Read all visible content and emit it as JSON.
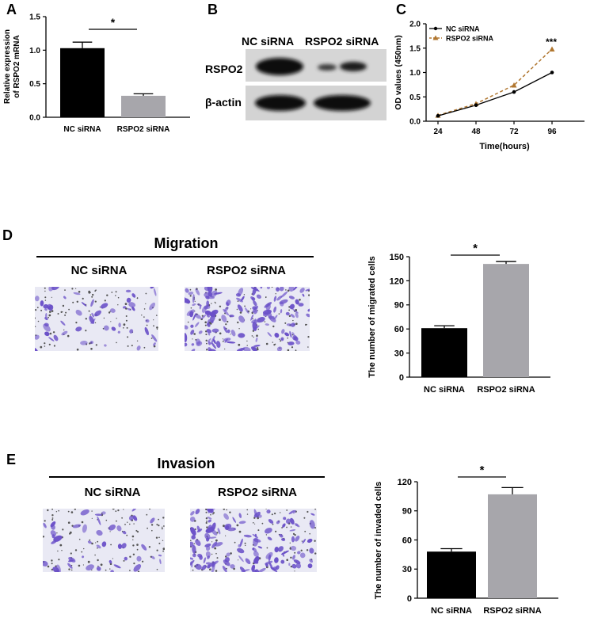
{
  "panels": {
    "A": "A",
    "B": "B",
    "C": "C",
    "D": "D",
    "E": "E"
  },
  "blot": {
    "headers": [
      "NC siRNA",
      "RSPO2 siRNA"
    ],
    "rows": [
      "RSPO2",
      "β-actin"
    ]
  },
  "migration": {
    "title": "Migration",
    "labels": [
      "NC siRNA",
      "RSPO2 siRNA"
    ]
  },
  "invasion": {
    "title": "Invasion",
    "labels": [
      "NC siRNA",
      "RSPO2 siRNA"
    ]
  },
  "colors": {
    "black_bar": "#000000",
    "grey_bar": "#a7a6ab",
    "orange_line": "#b0762f",
    "stain": "#6a50c8"
  },
  "chart_data": [
    {
      "id": "A",
      "type": "bar",
      "categories": [
        "NC siRNA",
        "RSPO2 siRNA"
      ],
      "values": [
        1.03,
        0.32
      ],
      "errors": [
        0.09,
        0.03
      ],
      "ylabel": [
        "Relative expression",
        "of RSPO2 mRNA"
      ],
      "ylim": [
        0,
        1.5
      ],
      "yticks": [
        "0.0",
        "0.5",
        "1.0",
        "1.5"
      ],
      "significance": "*"
    },
    {
      "id": "C",
      "type": "line",
      "x": [
        24,
        48,
        72,
        96
      ],
      "xticks": [
        "24",
        "48",
        "72",
        "96"
      ],
      "series": [
        {
          "name": "NC siRNA",
          "values": [
            0.11,
            0.33,
            0.6,
            1.0
          ]
        },
        {
          "name": "RSPO2 siRNA",
          "values": [
            0.12,
            0.36,
            0.74,
            1.48
          ]
        }
      ],
      "xlabel": "Time(hours)",
      "ylabel": "OD values (450nm)",
      "ylim": [
        0,
        2.0
      ],
      "yticks": [
        "0.0",
        "0.5",
        "1.0",
        "1.5",
        "2.0"
      ],
      "significance": "***",
      "legend": "top-left"
    },
    {
      "id": "D",
      "type": "bar",
      "categories": [
        "NC siRNA",
        "RSPO2 siRNA"
      ],
      "values": [
        61,
        141
      ],
      "errors": [
        3,
        3
      ],
      "ylabel": "The number of migrated cells",
      "ylim": [
        0,
        150
      ],
      "yticks": [
        "0",
        "30",
        "60",
        "90",
        "120",
        "150"
      ],
      "significance": "*"
    },
    {
      "id": "E",
      "type": "bar",
      "categories": [
        "NC siRNA",
        "RSPO2 siRNA"
      ],
      "values": [
        48,
        107
      ],
      "errors": [
        3,
        7
      ],
      "ylabel": "The number of invaded cells",
      "ylim": [
        0,
        120
      ],
      "yticks": [
        "0",
        "30",
        "60",
        "90",
        "120"
      ],
      "significance": "*"
    }
  ]
}
